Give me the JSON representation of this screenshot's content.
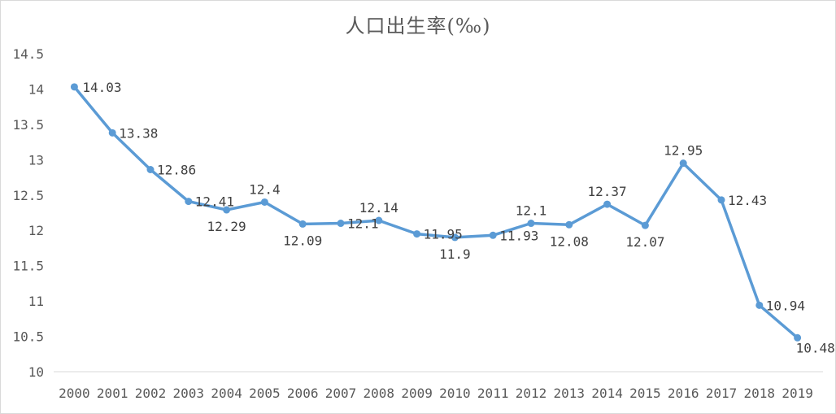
{
  "chart_data": {
    "type": "line",
    "title": "人口出生率(‰)",
    "xlabel": "",
    "ylabel": "",
    "ylim": [
      10,
      14.5
    ],
    "yticks": [
      "10",
      "10.5",
      "11",
      "11.5",
      "12",
      "12.5",
      "13",
      "13.5",
      "14",
      "14.5"
    ],
    "categories": [
      "2000",
      "2001",
      "2002",
      "2003",
      "2004",
      "2005",
      "2006",
      "2007",
      "2008",
      "2009",
      "2010",
      "2011",
      "2012",
      "2013",
      "2014",
      "2015",
      "2016",
      "2017",
      "2018",
      "2019"
    ],
    "series": [
      {
        "values": [
          14.03,
          13.38,
          12.86,
          12.41,
          12.29,
          12.4,
          12.09,
          12.1,
          12.14,
          11.95,
          11.9,
          11.93,
          12.1,
          12.08,
          12.37,
          12.07,
          12.95,
          12.43,
          10.94,
          10.48
        ],
        "labels": [
          "14.03",
          "13.38",
          "12.86",
          "12.41",
          "12.29",
          "12.4",
          "12.09",
          "12.1",
          "12.14",
          "11.95",
          "11.9",
          "11.93",
          "12.1",
          "12.08",
          "12.37",
          "12.07",
          "12.95",
          "12.43",
          "10.94",
          "10.48"
        ]
      }
    ],
    "grid": false,
    "legend": "none",
    "line_color": "#5b9bd5"
  }
}
